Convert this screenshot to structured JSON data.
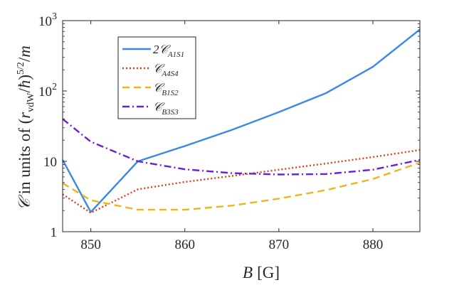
{
  "chart_data": {
    "type": "line",
    "xlabel": "B [G]",
    "ylabel": "𝒞 in units of (r_vdW/ħ)^{5/2}/m",
    "yscale": "log",
    "xlim": [
      847,
      885
    ],
    "ylim": [
      1,
      1000
    ],
    "xticks": [
      850,
      860,
      870,
      880
    ],
    "xtick_labels": [
      "850",
      "860",
      "870",
      "880"
    ],
    "yticks": [
      1,
      10,
      100,
      1000
    ],
    "ytick_labels": [
      "1",
      "10",
      "10²",
      "10³"
    ],
    "legend_position": "top-left",
    "x": [
      847,
      850,
      855,
      860,
      865,
      870,
      875,
      880,
      885
    ],
    "series": [
      {
        "name": "2𝒞_{A1S1}",
        "color": "#3b87e8",
        "dash": "solid",
        "values": [
          10.5,
          1.9,
          10,
          16.5,
          28,
          50,
          93,
          220,
          750
        ]
      },
      {
        "name": "𝒞_{A4S4}",
        "color": "#d9421c",
        "dash": "dotted",
        "values": [
          3.4,
          1.85,
          4,
          5.1,
          6.2,
          7.6,
          9.3,
          11.5,
          14.5
        ]
      },
      {
        "name": "𝒞_{B1S2}",
        "color": "#edb41c",
        "dash": "dashed",
        "values": [
          4.9,
          2.8,
          2.05,
          2.05,
          2.35,
          2.95,
          3.9,
          5.6,
          9.6
        ]
      },
      {
        "name": "𝒞_{B3S3}",
        "color": "#6a1fd6",
        "dash": "dashdot",
        "values": [
          40,
          19,
          10,
          7.7,
          6.8,
          6.5,
          6.6,
          7.6,
          10.5
        ]
      }
    ]
  }
}
